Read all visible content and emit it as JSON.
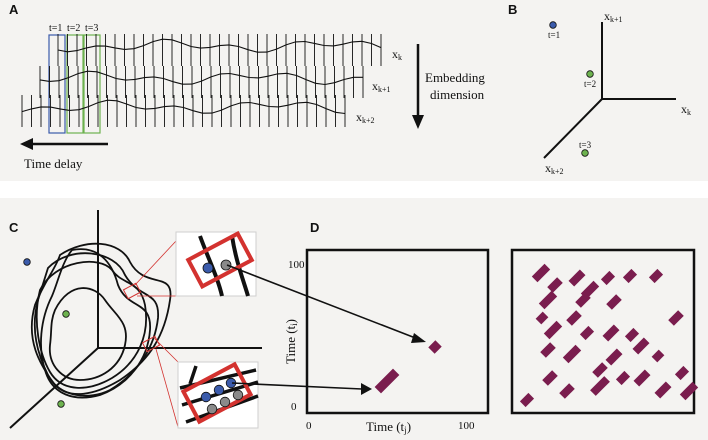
{
  "panels": {
    "a": "A",
    "b": "B",
    "c": "C",
    "d": "D"
  },
  "panel_a": {
    "t_labels": [
      "t=1",
      "t=2",
      "t=3"
    ],
    "series_labels": [
      "x",
      "x",
      "x"
    ],
    "series_subs": [
      "k",
      "k+1",
      "k+2"
    ],
    "embedding_line1": "Embedding",
    "embedding_line2": "dimension",
    "time_delay": "Time delay"
  },
  "panel_b": {
    "axis_labels": [
      "x",
      "x",
      "x"
    ],
    "axis_subs": [
      "k+1",
      "k",
      "k+2"
    ],
    "point_labels": [
      "t=1",
      "t=2",
      "t=3"
    ]
  },
  "panel_d": {
    "ylabel": "Time (t",
    "ylabel_sub": "i",
    "xlabel": "Time (t",
    "xlabel_sub": "j",
    "y_top": "100",
    "y_bottom": "0",
    "x_left": "0",
    "x_right": "100"
  },
  "colors": {
    "blue": "#3b5bab",
    "green": "#6db24f",
    "gray": "#8a8a8a",
    "red": "#d3322f",
    "maroon": "#7a1d4e",
    "line": "#111111"
  }
}
